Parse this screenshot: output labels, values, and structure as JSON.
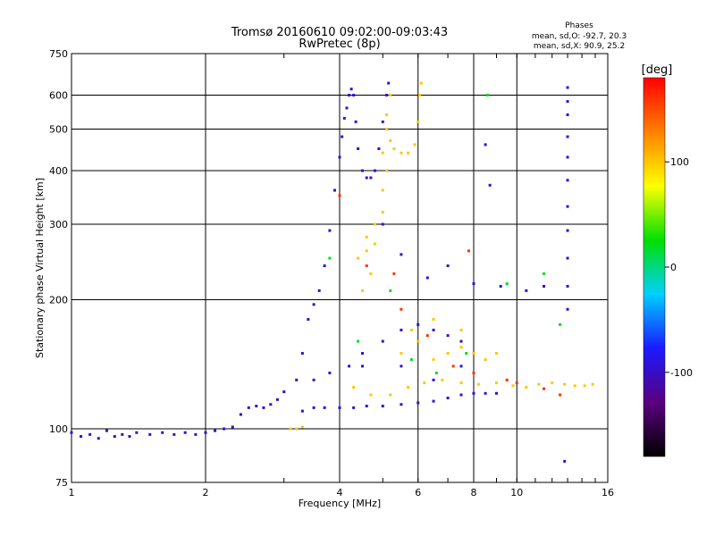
{
  "chart_data": {
    "type": "scatter",
    "title": "Tromsø 20160610 09:02:00-09:03:43",
    "subtitle": "RwPretec (8p)",
    "xlabel": "Frequency [MHz]",
    "ylabel": "Stationary phase Virtual Height [km]",
    "x_scale": "log",
    "y_scale": "log",
    "xlim": [
      1,
      16
    ],
    "ylim": [
      75,
      750
    ],
    "grid": true,
    "x_ticks": [
      1,
      2,
      4,
      6,
      8,
      10,
      16
    ],
    "y_ticks": [
      75,
      100,
      200,
      300,
      400,
      500,
      600,
      750
    ],
    "stats": {
      "heading": "Phases",
      "line1": "mean, sd,O: -92.7, 20.3",
      "line2": "mean, sd,X:  90.9, 25.2"
    },
    "colorbar": {
      "label": "[deg]",
      "min": -180,
      "max": 180,
      "ticks": [
        100,
        0,
        -100
      ],
      "colors": [
        "#000000",
        "#5a007f",
        "#1a1aff",
        "#00d0ff",
        "#00e000",
        "#ffff00",
        "#ff8000",
        "#ff0000"
      ]
    },
    "series": [
      {
        "values": [
          [
            1.0,
            98
          ],
          [
            1.05,
            96
          ],
          [
            1.1,
            97
          ],
          [
            1.15,
            95
          ],
          [
            1.2,
            99
          ],
          [
            1.25,
            96
          ],
          [
            1.3,
            97
          ],
          [
            1.35,
            96
          ],
          [
            1.4,
            98
          ],
          [
            1.5,
            97
          ],
          [
            1.6,
            98
          ],
          [
            1.7,
            97
          ],
          [
            1.8,
            98
          ],
          [
            1.9,
            97
          ],
          [
            2.0,
            98
          ],
          [
            2.1,
            99
          ],
          [
            2.2,
            100
          ],
          [
            2.3,
            101
          ],
          [
            2.4,
            108
          ],
          [
            2.5,
            112
          ],
          [
            2.6,
            113
          ],
          [
            2.7,
            112
          ],
          [
            2.8,
            114
          ],
          [
            2.9,
            117
          ],
          [
            3.0,
            122
          ],
          [
            3.2,
            130
          ],
          [
            3.3,
            150
          ],
          [
            3.4,
            180
          ],
          [
            3.5,
            195
          ],
          [
            3.6,
            210
          ],
          [
            3.7,
            240
          ],
          [
            3.8,
            290
          ],
          [
            3.9,
            360
          ],
          [
            4.0,
            430
          ],
          [
            4.05,
            480
          ],
          [
            4.1,
            530
          ],
          [
            4.15,
            560
          ],
          [
            4.2,
            600
          ],
          [
            4.25,
            620
          ],
          [
            4.3,
            600
          ],
          [
            4.35,
            520
          ],
          [
            4.4,
            450
          ],
          [
            4.5,
            400
          ],
          [
            4.6,
            385
          ],
          [
            4.7,
            385
          ],
          [
            4.8,
            400
          ],
          [
            4.9,
            450
          ],
          [
            5.0,
            520
          ],
          [
            5.1,
            600
          ],
          [
            5.15,
            640
          ],
          [
            3.3,
            110
          ],
          [
            3.5,
            112
          ],
          [
            3.7,
            112
          ],
          [
            4.0,
            112
          ],
          [
            4.3,
            112
          ],
          [
            4.6,
            113
          ],
          [
            5.0,
            113
          ],
          [
            5.5,
            114
          ],
          [
            6.0,
            115
          ],
          [
            6.5,
            116
          ],
          [
            7.0,
            118
          ],
          [
            7.5,
            120
          ],
          [
            8.0,
            121
          ],
          [
            8.5,
            121
          ],
          [
            9.0,
            121
          ],
          [
            3.5,
            130
          ],
          [
            3.8,
            135
          ],
          [
            4.2,
            140
          ],
          [
            4.5,
            150
          ],
          [
            5.0,
            160
          ],
          [
            5.5,
            170
          ],
          [
            6.0,
            175
          ],
          [
            6.5,
            170
          ],
          [
            7.0,
            165
          ],
          [
            7.5,
            160
          ],
          [
            4.5,
            140
          ],
          [
            5.5,
            140
          ],
          [
            6.5,
            130
          ],
          [
            7.5,
            140
          ],
          [
            13,
            625
          ],
          [
            13,
            580
          ],
          [
            13,
            540
          ],
          [
            13,
            480
          ],
          [
            13,
            430
          ],
          [
            13,
            380
          ],
          [
            13,
            330
          ],
          [
            13,
            290
          ],
          [
            13,
            250
          ],
          [
            13,
            215
          ],
          [
            13,
            190
          ],
          [
            8.5,
            460
          ],
          [
            8.7,
            370
          ],
          [
            12.8,
            84
          ],
          [
            5.0,
            300
          ],
          [
            5.5,
            255
          ],
          [
            6.3,
            225
          ],
          [
            7.0,
            240
          ],
          [
            8.0,
            218
          ],
          [
            9.2,
            215
          ],
          [
            10.5,
            210
          ],
          [
            11.5,
            215
          ]
        ],
        "phase": -95
      },
      {
        "values": [
          [
            5.2,
            600
          ],
          [
            5.1,
            540
          ],
          [
            5.1,
            500
          ],
          [
            5.2,
            470
          ],
          [
            5.3,
            450
          ],
          [
            5.5,
            440
          ],
          [
            5.7,
            440
          ],
          [
            5.9,
            460
          ],
          [
            6.0,
            520
          ],
          [
            6.05,
            600
          ],
          [
            6.1,
            640
          ],
          [
            4.6,
            280
          ],
          [
            4.8,
            300
          ],
          [
            5.0,
            320
          ],
          [
            5.0,
            360
          ],
          [
            5.1,
            400
          ],
          [
            5.0,
            440
          ],
          [
            4.4,
            250
          ],
          [
            4.6,
            260
          ],
          [
            4.8,
            270
          ],
          [
            4.7,
            230
          ],
          [
            4.5,
            210
          ],
          [
            3.1,
            100
          ],
          [
            3.2,
            100
          ],
          [
            3.3,
            101
          ],
          [
            4.3,
            125
          ],
          [
            4.7,
            120
          ],
          [
            5.2,
            120
          ],
          [
            5.7,
            125
          ],
          [
            6.2,
            128
          ],
          [
            6.8,
            130
          ],
          [
            7.5,
            128
          ],
          [
            8.2,
            127
          ],
          [
            9.0,
            128
          ],
          [
            9.8,
            126
          ],
          [
            10.5,
            125
          ],
          [
            11.2,
            127
          ],
          [
            12.0,
            128
          ],
          [
            12.8,
            127
          ],
          [
            13.5,
            126
          ],
          [
            14.2,
            126
          ],
          [
            14.8,
            127
          ],
          [
            5.5,
            150
          ],
          [
            6.0,
            160
          ],
          [
            6.5,
            145
          ],
          [
            7.0,
            150
          ],
          [
            7.5,
            155
          ],
          [
            8.0,
            150
          ],
          [
            8.5,
            145
          ],
          [
            9.0,
            150
          ],
          [
            5.8,
            170
          ],
          [
            6.5,
            180
          ],
          [
            7.5,
            170
          ]
        ],
        "phase": 100
      },
      {
        "values": [
          [
            4.6,
            240
          ],
          [
            5.5,
            190
          ],
          [
            6.3,
            165
          ],
          [
            7.2,
            140
          ],
          [
            8.0,
            135
          ],
          [
            10.0,
            128
          ],
          [
            11.5,
            124
          ],
          [
            12.5,
            120
          ],
          [
            9.5,
            130
          ],
          [
            4.0,
            350
          ],
          [
            5.3,
            230
          ],
          [
            7.8,
            260
          ]
        ],
        "phase": 160
      },
      {
        "values": [
          [
            3.8,
            250
          ],
          [
            5.2,
            210
          ],
          [
            6.6,
            135
          ],
          [
            7.7,
            150
          ],
          [
            8.6,
            600
          ],
          [
            4.4,
            160
          ],
          [
            5.8,
            145
          ],
          [
            9.5,
            218
          ],
          [
            11.5,
            230
          ],
          [
            12.5,
            175
          ]
        ],
        "phase": 20
      }
    ]
  }
}
